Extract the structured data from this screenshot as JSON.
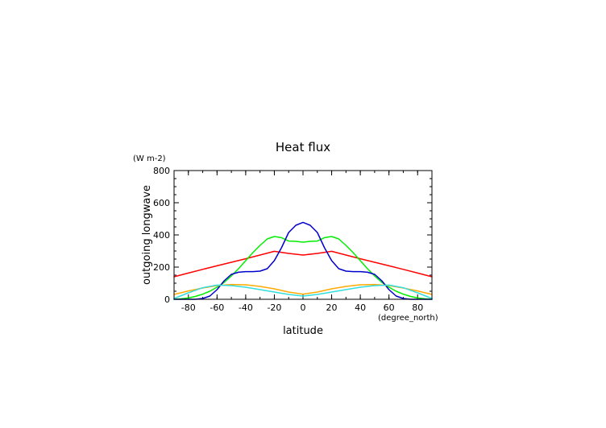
{
  "chart_data": {
    "type": "line",
    "title": "Heat flux",
    "xlabel": "latitude",
    "ylabel": "outgoing longwave",
    "x_unit": "(degree_north)",
    "y_unit": "(W m-2)",
    "xlim": [
      -90,
      90
    ],
    "ylim": [
      0,
      800
    ],
    "x_ticks": [
      -80,
      -60,
      -40,
      -20,
      0,
      20,
      40,
      60,
      80
    ],
    "x_tick_labels": [
      "-80",
      "-60",
      "-40",
      "-20",
      "0",
      "20",
      "40",
      "60",
      "80"
    ],
    "y_ticks": [
      0,
      200,
      400,
      600,
      800
    ],
    "y_tick_labels": [
      "0",
      "200",
      "400",
      "600",
      "800"
    ],
    "x_minor_step": 10,
    "y_minor_step": 50,
    "grid": false,
    "series": [
      {
        "color": "#ff0000",
        "x": [
          -90,
          -80,
          -70,
          -60,
          -50,
          -40,
          -30,
          -20,
          -10,
          0,
          10,
          20,
          30,
          40,
          50,
          60,
          70,
          80,
          90
        ],
        "values": [
          140,
          163,
          186,
          208,
          230,
          252,
          275,
          298,
          285,
          275,
          285,
          298,
          275,
          252,
          230,
          208,
          186,
          163,
          140
        ]
      },
      {
        "color": "#00ee00",
        "x": [
          -90,
          -85,
          -80,
          -75,
          -70,
          -65,
          -60,
          -55,
          -50,
          -45,
          -40,
          -35,
          -30,
          -25,
          -20,
          -15,
          -10,
          -5,
          0,
          5,
          10,
          15,
          20,
          25,
          30,
          35,
          40,
          45,
          50,
          55,
          60,
          65,
          70,
          75,
          80,
          85,
          90
        ],
        "values": [
          0,
          3,
          8,
          18,
          32,
          50,
          75,
          105,
          145,
          190,
          240,
          290,
          335,
          375,
          390,
          383,
          362,
          360,
          355,
          360,
          362,
          383,
          390,
          375,
          335,
          290,
          240,
          190,
          145,
          105,
          75,
          50,
          32,
          18,
          8,
          3,
          0
        ]
      },
      {
        "color": "#0000cc",
        "x": [
          -90,
          -85,
          -80,
          -75,
          -70,
          -65,
          -60,
          -55,
          -50,
          -45,
          -40,
          -35,
          -30,
          -25,
          -20,
          -15,
          -10,
          -5,
          0,
          5,
          10,
          15,
          20,
          25,
          30,
          35,
          40,
          45,
          50,
          55,
          60,
          65,
          70,
          75,
          80,
          85,
          90
        ],
        "values": [
          0,
          0,
          0,
          0,
          5,
          20,
          60,
          115,
          155,
          168,
          172,
          172,
          175,
          190,
          240,
          320,
          415,
          460,
          478,
          460,
          415,
          320,
          240,
          190,
          175,
          172,
          172,
          168,
          155,
          115,
          60,
          20,
          5,
          0,
          0,
          0,
          0
        ]
      },
      {
        "color": "#ffaa00",
        "x": [
          -90,
          -80,
          -70,
          -60,
          -50,
          -40,
          -30,
          -20,
          -10,
          0,
          10,
          20,
          30,
          40,
          50,
          60,
          70,
          80,
          90
        ],
        "values": [
          30,
          52,
          70,
          85,
          92,
          90,
          80,
          65,
          45,
          32,
          45,
          65,
          80,
          90,
          92,
          85,
          70,
          52,
          30
        ]
      },
      {
        "color": "#33dddd",
        "x": [
          -90,
          -80,
          -70,
          -60,
          -50,
          -40,
          -30,
          -20,
          -10,
          0,
          10,
          20,
          30,
          40,
          50,
          60,
          70,
          80,
          90
        ],
        "values": [
          5,
          40,
          72,
          88,
          85,
          75,
          60,
          45,
          30,
          20,
          30,
          45,
          60,
          75,
          85,
          88,
          72,
          40,
          5
        ]
      }
    ]
  }
}
